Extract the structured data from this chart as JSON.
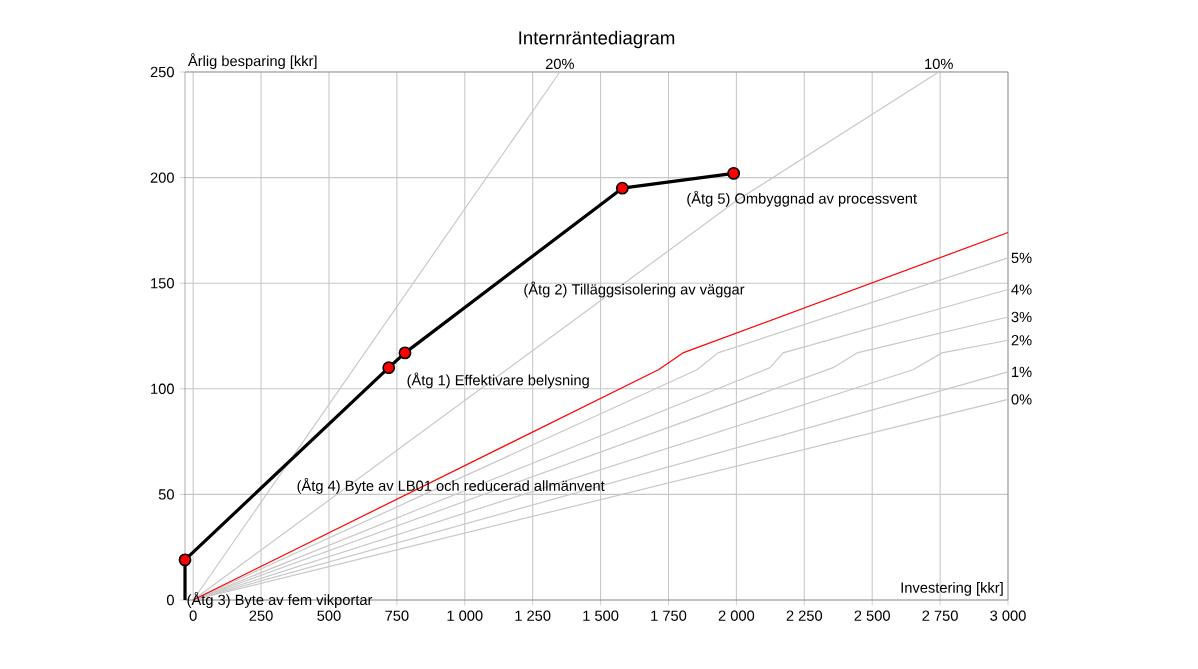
{
  "chart_data": {
    "type": "line",
    "title": "Internräntediagram",
    "xlabel": "Investering [kkr]",
    "ylabel": "Årlig besparing [kkr]",
    "xlim": [
      -30,
      3000
    ],
    "ylim": [
      0,
      250
    ],
    "xticks": [
      0,
      250,
      500,
      750,
      {
        "value": 1000,
        "label": "1 000"
      },
      {
        "value": 1250,
        "label": "1 250"
      },
      {
        "value": 1500,
        "label": "1 500"
      },
      {
        "value": 1750,
        "label": "1 750"
      },
      {
        "value": 2000,
        "label": "2 000"
      },
      {
        "value": 2250,
        "label": "2 250"
      },
      {
        "value": 2500,
        "label": "2 500"
      },
      {
        "value": 2750,
        "label": "2 750"
      },
      {
        "value": 3000,
        "label": "3 000"
      }
    ],
    "yticks": [
      0,
      50,
      100,
      150,
      200,
      250
    ],
    "grid": true,
    "series": [
      {
        "name": "20%",
        "color": "#c8c8c8",
        "marker": "none",
        "x": [
          0,
          1350
        ],
        "values": [
          0,
          250
        ]
      },
      {
        "name": "10%",
        "color": "#c8c8c8",
        "marker": "none",
        "x": [
          0,
          2000,
          2745
        ],
        "values": [
          0,
          189,
          250
        ]
      },
      {
        "name": "5%",
        "color": "#c8c8c8",
        "marker": "none",
        "x": [
          0,
          1855,
          1932,
          3000
        ],
        "values": [
          0,
          109,
          117,
          162
        ]
      },
      {
        "name": "4%",
        "color": "#c8c8c8",
        "marker": "none",
        "x": [
          0,
          2124,
          2172,
          3000
        ],
        "values": [
          0,
          110,
          117,
          147
        ]
      },
      {
        "name": "3%",
        "color": "#c8c8c8",
        "marker": "none",
        "x": [
          0,
          2356,
          2444,
          3000
        ],
        "values": [
          0,
          110,
          117,
          134
        ]
      },
      {
        "name": "2%",
        "color": "#c8c8c8",
        "marker": "none",
        "x": [
          0,
          2650,
          2757,
          3000
        ],
        "values": [
          0,
          109,
          117,
          123
        ]
      },
      {
        "name": "1%",
        "color": "#c8c8c8",
        "marker": "none",
        "x": [
          0,
          3000
        ],
        "values": [
          0,
          108
        ]
      },
      {
        "name": "0%",
        "color": "#c8c8c8",
        "marker": "none",
        "x": [
          0,
          3000
        ],
        "values": [
          0,
          95
        ]
      },
      {
        "color": "#ff0000",
        "marker": "none",
        "x": [
          0,
          1713,
          1803,
          3000
        ],
        "values": [
          0,
          109,
          117,
          174
        ]
      },
      {
        "color": "#000000",
        "marker": "none",
        "x": [
          -30,
          -30,
          720,
          780,
          1580,
          1990
        ],
        "values": [
          0,
          19,
          110,
          117,
          195,
          202
        ]
      },
      {
        "type": "scatter",
        "color": "#ff0000",
        "marker": "circle",
        "x": [
          -30,
          720,
          780,
          1580,
          1990
        ],
        "values": [
          19,
          110,
          117,
          195,
          202
        ]
      }
    ],
    "annotations": [
      "(Åtg 3) Byte av fem vikportar",
      "(Åtg 4) Byte av LB01 och reducerad allmänvent",
      "(Åtg 1) Effektivare belysning",
      "(Åtg 2) Tilläggsisolering av väggar",
      "(Åtg 5) Ombyggnad av processvent"
    ]
  }
}
